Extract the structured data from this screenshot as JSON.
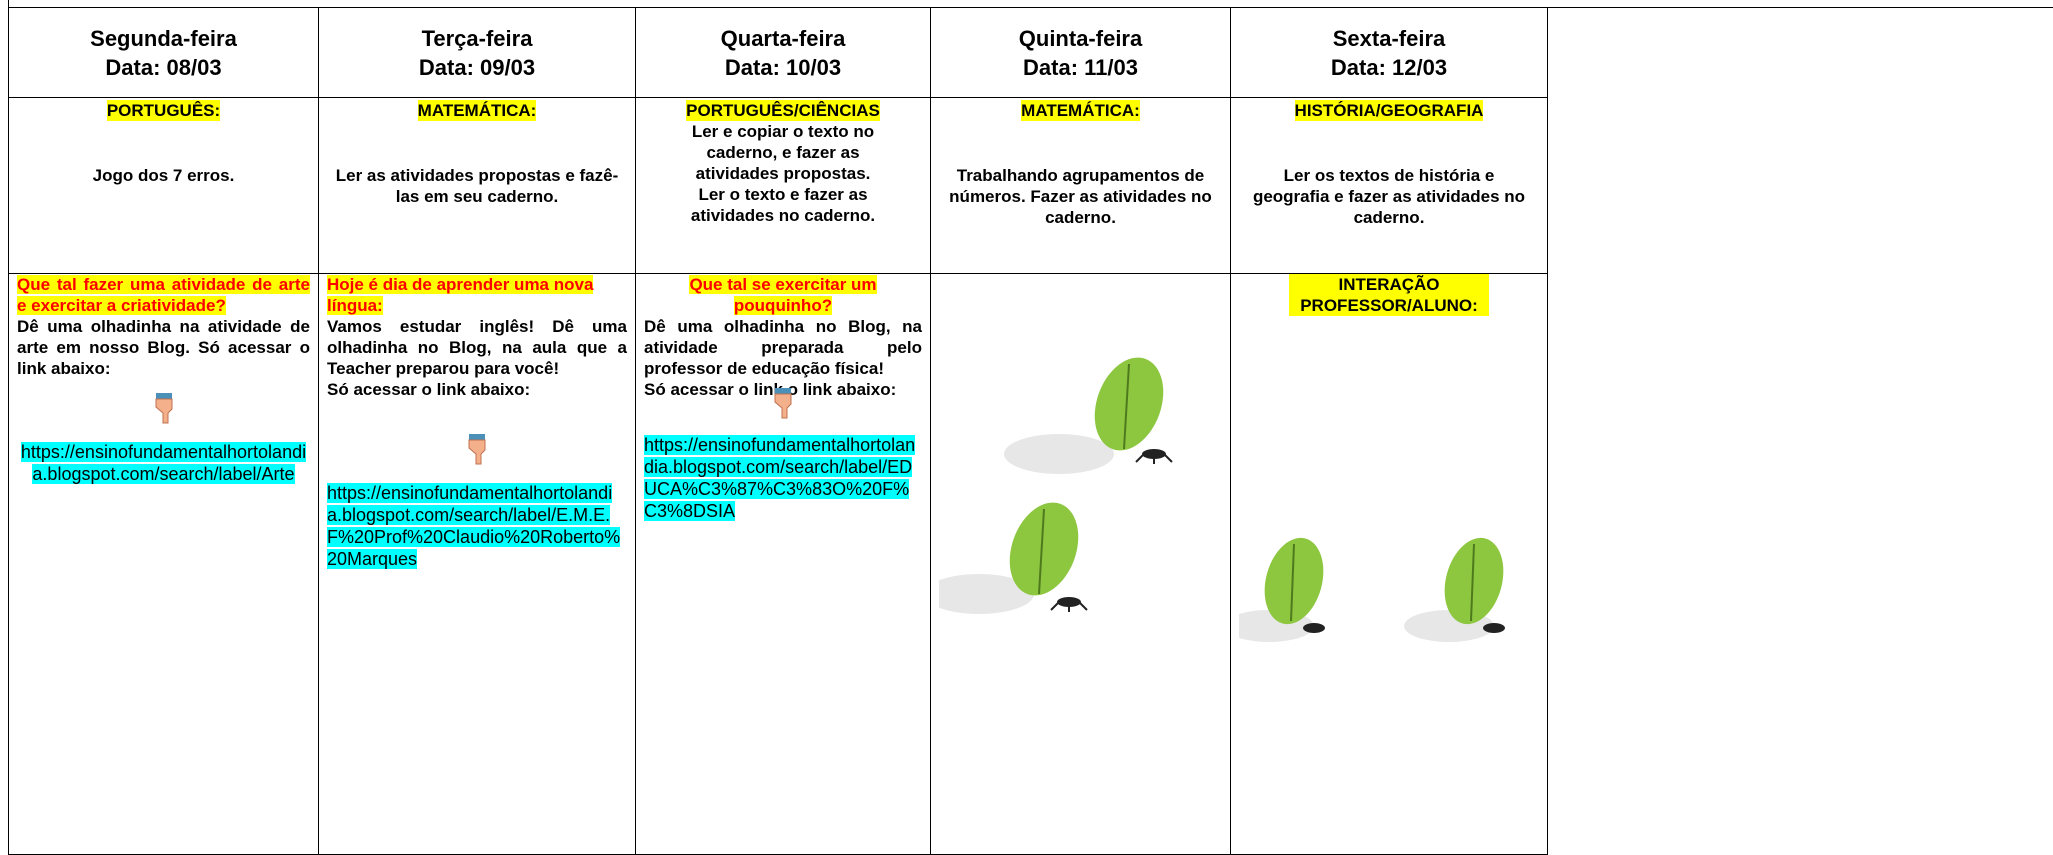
{
  "days": [
    {
      "day": "Segunda-feira",
      "date": "Data: 08/03",
      "subject": "PORTUGUÊS:",
      "task": [
        "Jogo dos 7 erros."
      ],
      "activity_title": "Que tal fazer uma atividade de arte e exercitar a criatividade?",
      "activity_text": [
        "Dê uma olhadinha na atividade de arte em nosso Blog. Só acessar o link abaixo:"
      ],
      "link": "https://ensinofundamentalhortolandia.blogspot.com/search/label/Arte"
    },
    {
      "day": "Terça-feira",
      "date": "Data: 09/03",
      "subject": "MATEMÁTICA:",
      "task": [
        "Ler as atividades propostas e fazê-las em seu caderno."
      ],
      "activity_title": "Hoje é dia de aprender uma nova língua:",
      "activity_text": [
        " Vamos estudar inglês! Dê uma olhadinha no Blog, na aula que a Teacher preparou para você!",
        "Só acessar o link abaixo:"
      ],
      "link": "https://ensinofundamentalhortolandia.blogspot.com/search/label/E.M.E.F%20Prof%20Claudio%20Roberto%20Marques"
    },
    {
      "day": "Quarta-feira",
      "date": "Data: 10/03",
      "subject": "PORTUGUÊS/CIÊNCIAS",
      "task": [
        "Ler e copiar o texto no caderno, e fazer as atividades propostas.",
        "Ler o texto e fazer as atividades no caderno."
      ],
      "activity_title": "Que tal se exercitar um pouquinho?",
      "activity_text": [
        "Dê uma olhadinha no Blog, na atividade preparada pelo professor de educação física!",
        "Só acessar o link o link abaixo:"
      ],
      "link": "https://ensinofundamentalhortolandia.blogspot.com/search/label/EDUCA%C3%87%C3%83O%20F%C3%8DSIA"
    },
    {
      "day": "Quinta-feira",
      "date": "Data: 11/03",
      "subject": "MATEMÁTICA:",
      "task": [
        "Trabalhando agrupamentos de números. Fazer as atividades no caderno."
      ]
    },
    {
      "day": "Sexta-feira",
      "date": "Data: 12/03",
      "subject": "HISTÓRIA/GEOGRAFIA",
      "task": [
        "Ler os textos de história e geografia e fazer as atividades no caderno."
      ],
      "activity_title": "INTERAÇÃO PROFESSOR/ALUNO:"
    }
  ]
}
